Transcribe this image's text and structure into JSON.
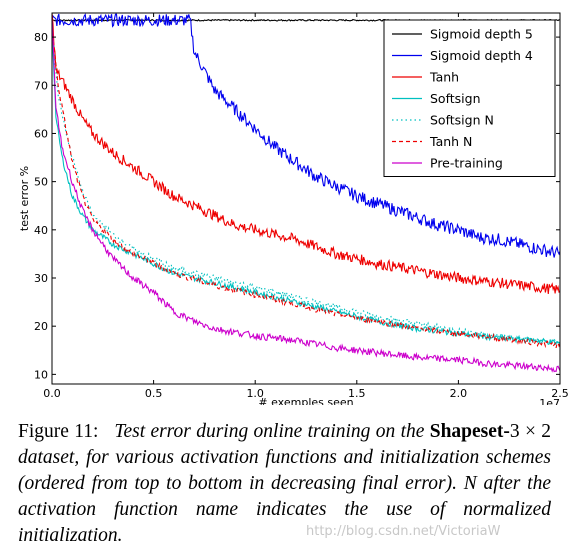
{
  "chart_data": {
    "type": "line",
    "title": "",
    "xlabel": "# exemples seen",
    "ylabel": "test error %",
    "x_multiplier_label": "1e7",
    "xlim": [
      0.0,
      2.5
    ],
    "ylim": [
      8,
      85
    ],
    "xticks": [
      "0.0",
      "0.5",
      "1.0",
      "1.5",
      "2.0",
      "2.5"
    ],
    "yticks": [
      "10",
      "20",
      "30",
      "40",
      "50",
      "60",
      "70",
      "80"
    ],
    "grid": false,
    "legend_position": "top-right",
    "series": [
      {
        "name": "Sigmoid depth 5",
        "color": "#000000",
        "dash": "solid",
        "x": [
          0.0,
          0.25,
          0.5,
          0.75,
          1.0,
          1.25,
          1.5,
          1.75,
          2.0,
          2.25,
          2.5
        ],
        "y": [
          83.5,
          83.5,
          83.5,
          83.5,
          83.5,
          83.5,
          83.5,
          83.5,
          83.5,
          83.5,
          83.5
        ]
      },
      {
        "name": "Sigmoid depth 4",
        "color": "#0000ee",
        "dash": "solid",
        "x": [
          0.0,
          0.3,
          0.6,
          0.68,
          0.7,
          0.75,
          0.8,
          0.9,
          1.0,
          1.1,
          1.2,
          1.3,
          1.4,
          1.5,
          1.6,
          1.7,
          1.8,
          1.9,
          2.0,
          2.1,
          2.2,
          2.3,
          2.4,
          2.5
        ],
        "y": [
          83.5,
          83.5,
          83.5,
          83.5,
          77,
          73,
          69,
          65,
          61,
          57,
          54,
          51,
          49,
          47,
          45.5,
          44,
          42.5,
          41,
          40,
          38.5,
          38,
          37,
          36,
          35
        ]
      },
      {
        "name": "Tanh",
        "color": "#ee0000",
        "dash": "solid",
        "x": [
          0.0,
          0.02,
          0.05,
          0.1,
          0.15,
          0.2,
          0.25,
          0.3,
          0.4,
          0.5,
          0.6,
          0.7,
          0.8,
          0.9,
          1.0,
          1.2,
          1.4,
          1.6,
          1.8,
          2.0,
          2.2,
          2.4,
          2.5
        ],
        "y": [
          85,
          73,
          71,
          67,
          63,
          60,
          58,
          56,
          53,
          50,
          47,
          45,
          43,
          41,
          40,
          38,
          35,
          33,
          31.5,
          30,
          29,
          28,
          27.5
        ]
      },
      {
        "name": "Softsign",
        "color": "#00c0c0",
        "dash": "solid",
        "x": [
          0.0,
          0.02,
          0.05,
          0.1,
          0.15,
          0.2,
          0.3,
          0.4,
          0.5,
          0.6,
          0.8,
          1.0,
          1.2,
          1.4,
          1.6,
          1.8,
          2.0,
          2.2,
          2.4,
          2.5
        ],
        "y": [
          82,
          63,
          55,
          47,
          43,
          40,
          37,
          35,
          33,
          31,
          29,
          27,
          25,
          23,
          21,
          19.5,
          18.5,
          17.5,
          17,
          16.5
        ]
      },
      {
        "name": "Softsign N",
        "color": "#00c0c0",
        "dash": "dotted",
        "x": [
          0.0,
          0.03,
          0.06,
          0.1,
          0.15,
          0.2,
          0.3,
          0.4,
          0.5,
          0.6,
          0.8,
          1.0,
          1.2,
          1.4,
          1.6,
          1.8,
          2.0,
          2.2,
          2.4,
          2.5
        ],
        "y": [
          82,
          68,
          62,
          55,
          48,
          43,
          39,
          36,
          34,
          32,
          30,
          28,
          26,
          24,
          22,
          20.5,
          19,
          18,
          17,
          16.5
        ]
      },
      {
        "name": "Tanh N",
        "color": "#ee0000",
        "dash": "dashed",
        "x": [
          0.0,
          0.03,
          0.06,
          0.1,
          0.15,
          0.2,
          0.3,
          0.4,
          0.5,
          0.6,
          0.8,
          1.0,
          1.2,
          1.4,
          1.6,
          1.8,
          2.0,
          2.2,
          2.4,
          2.5
        ],
        "y": [
          82,
          70,
          63,
          54,
          47,
          42,
          38,
          35,
          33,
          31,
          28.5,
          26.5,
          24.5,
          22.5,
          21,
          19.5,
          18.5,
          17.5,
          16.5,
          16
        ]
      },
      {
        "name": "Pre-training",
        "color": "#cc00cc",
        "dash": "solid",
        "x": [
          0.0,
          0.02,
          0.05,
          0.1,
          0.15,
          0.2,
          0.3,
          0.4,
          0.5,
          0.6,
          0.7,
          0.8,
          1.0,
          1.2,
          1.4,
          1.6,
          1.8,
          2.0,
          2.2,
          2.4,
          2.5
        ],
        "y": [
          84,
          65,
          57,
          50,
          44,
          40,
          34,
          30,
          27,
          23,
          21,
          19.5,
          18,
          17,
          15.5,
          14.5,
          13.5,
          13,
          12,
          11.5,
          11
        ]
      }
    ]
  },
  "caption": {
    "figure_label": "Figure 11:",
    "part1": "Test error during online training on the",
    "dataset_name": "Shapeset-",
    "dataset_dims": "3 × 2",
    "part2": "dataset, for various activation functions and initialization schemes (ordered from top to bottom in decreasing final error). N after the activation function name indicates the use of normalized initialization."
  },
  "watermark": "http://blog.csdn.net/VictoriaW"
}
